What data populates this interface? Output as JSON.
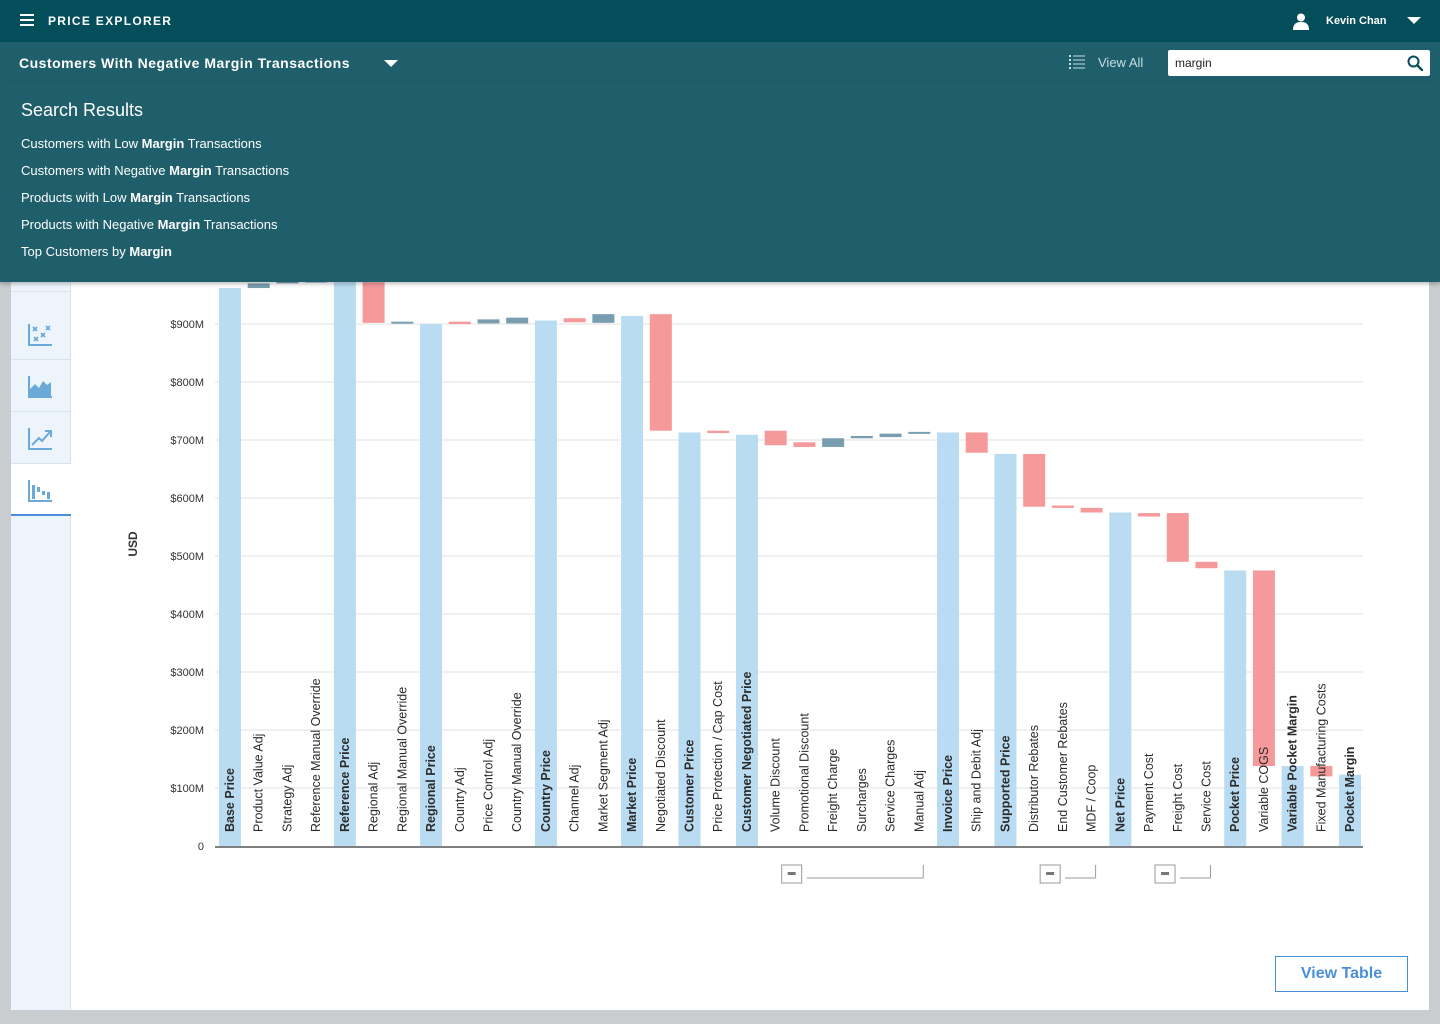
{
  "header": {
    "app_title": "PRICE EXPLORER",
    "user_name": "Kevin Chan",
    "icons": {
      "menu": "hamburger-icon",
      "user": "user-icon",
      "user_menu": "chevron-down-icon"
    }
  },
  "subheader": {
    "report_title": "Customers With Negative Margin Transactions",
    "view_all_label": "View All",
    "search_value": "margin",
    "icons": {
      "report_menu": "chevron-down-icon",
      "view_all": "list-icon",
      "search": "search-icon"
    }
  },
  "search_results": {
    "heading": "Search Results",
    "items": [
      {
        "before": "Customers with Low ",
        "match": "Margin",
        "after": " Transactions"
      },
      {
        "before": "Customers with Negative ",
        "match": "Margin",
        "after": " Transactions"
      },
      {
        "before": "Products with Low ",
        "match": "Margin",
        "after": " Transactions"
      },
      {
        "before": "Products with Negative ",
        "match": "Margin",
        "after": " Transactions"
      },
      {
        "before": "Top Customers by ",
        "match": "Margin",
        "after": ""
      }
    ]
  },
  "sidebar": {
    "items": [
      {
        "icon": "chart-type-icon"
      },
      {
        "icon": "scatter-chart-icon"
      },
      {
        "icon": "area-chart-icon"
      },
      {
        "icon": "trend-line-icon"
      },
      {
        "icon": "waterfall-chart-icon",
        "active": true
      }
    ]
  },
  "actions": {
    "view_table_label": "View Table"
  },
  "chart_data": {
    "type": "bar",
    "subtype": "waterfall",
    "ylabel": "USD",
    "ylim": [
      0,
      1000
    ],
    "y_ticks": [
      {
        "value": 0,
        "label": "0"
      },
      {
        "value": 100,
        "label": "$100M"
      },
      {
        "value": 200,
        "label": "$200M"
      },
      {
        "value": 300,
        "label": "$300M"
      },
      {
        "value": 400,
        "label": "$400M"
      },
      {
        "value": 500,
        "label": "$500M"
      },
      {
        "value": 600,
        "label": "$600M"
      },
      {
        "value": 700,
        "label": "$700M"
      },
      {
        "value": 800,
        "label": "$800M"
      },
      {
        "value": 900,
        "label": "$900M"
      }
    ],
    "colors": {
      "total": "#b9dcf2",
      "decrease": "#f5999b",
      "increase": "#7a9eb1",
      "label": "#2b2b2b"
    },
    "categories": [
      {
        "label": "Base Price",
        "kind": "total",
        "start": 0,
        "end": 962
      },
      {
        "label": "Product Value Adj",
        "kind": "increase",
        "start": 962,
        "end": 970
      },
      {
        "label": "Strategy Adj",
        "kind": "increase",
        "start": 970,
        "end": 975
      },
      {
        "label": "Reference Manual Override",
        "kind": "increase",
        "start": 975,
        "end": 975
      },
      {
        "label": "Reference Price",
        "kind": "total",
        "start": 0,
        "end": 972
      },
      {
        "label": "Regional Adj",
        "kind": "decrease",
        "start": 972,
        "end": 902
      },
      {
        "label": "Regional Manual Override",
        "kind": "increase",
        "start": 902,
        "end": 904
      },
      {
        "label": "Regional Price",
        "kind": "total",
        "start": 0,
        "end": 900
      },
      {
        "label": "Country Adj",
        "kind": "decrease",
        "start": 904,
        "end": 900
      },
      {
        "label": "Price Control Adj",
        "kind": "increase",
        "start": 901,
        "end": 908
      },
      {
        "label": "Country Manual Override",
        "kind": "increase",
        "start": 901,
        "end": 911
      },
      {
        "label": "Country Price",
        "kind": "total",
        "start": 0,
        "end": 906
      },
      {
        "label": "Channel Adj",
        "kind": "decrease",
        "start": 910,
        "end": 903
      },
      {
        "label": "Market Segment Adj",
        "kind": "increase",
        "start": 902,
        "end": 917
      },
      {
        "label": "Market Price",
        "kind": "total",
        "start": 0,
        "end": 914
      },
      {
        "label": "Negotiated Discount",
        "kind": "decrease",
        "start": 917,
        "end": 716
      },
      {
        "label": "Customer Price",
        "kind": "total",
        "start": 0,
        "end": 713
      },
      {
        "label": "Price Protection / Cap Cost",
        "kind": "decrease",
        "start": 716,
        "end": 712
      },
      {
        "label": "Customer Negotiated Price",
        "kind": "total",
        "start": 0,
        "end": 709
      },
      {
        "label": "Volume Discount",
        "kind": "decrease",
        "start": 716,
        "end": 691
      },
      {
        "label": "Promotional Discount",
        "kind": "decrease",
        "start": 696,
        "end": 688
      },
      {
        "label": "Freight Charge",
        "kind": "increase",
        "start": 688,
        "end": 703
      },
      {
        "label": "Surcharges",
        "kind": "increase",
        "start": 703,
        "end": 707
      },
      {
        "label": "Service Charges",
        "kind": "increase",
        "start": 705,
        "end": 711
      },
      {
        "label": "Manual Adj",
        "kind": "increase",
        "start": 711,
        "end": 714
      },
      {
        "label": "Invoice Price",
        "kind": "total",
        "start": 0,
        "end": 713
      },
      {
        "label": "Ship and Debit Adj",
        "kind": "decrease",
        "start": 713,
        "end": 678
      },
      {
        "label": "Supported Price",
        "kind": "total",
        "start": 0,
        "end": 676
      },
      {
        "label": "Distributor Rebates",
        "kind": "decrease",
        "start": 676,
        "end": 585
      },
      {
        "label": "End Customer Rebates",
        "kind": "decrease",
        "start": 587,
        "end": 583
      },
      {
        "label": "MDF / Coop",
        "kind": "decrease",
        "start": 583,
        "end": 575
      },
      {
        "label": "Net Price",
        "kind": "total",
        "start": 0,
        "end": 575
      },
      {
        "label": "Payment Cost",
        "kind": "decrease",
        "start": 574,
        "end": 568
      },
      {
        "label": "Freight Cost",
        "kind": "decrease",
        "start": 574,
        "end": 490
      },
      {
        "label": "Service Cost",
        "kind": "decrease",
        "start": 490,
        "end": 479
      },
      {
        "label": "Pocket Price",
        "kind": "total",
        "start": 0,
        "end": 475
      },
      {
        "label": "Variable COGS",
        "kind": "decrease",
        "start": 475,
        "end": 138
      },
      {
        "label": "Variable Pocket Margin",
        "kind": "total",
        "start": 0,
        "end": 138
      },
      {
        "label": "Fixed Manufacturing Costs",
        "kind": "decrease",
        "start": 138,
        "end": 120
      },
      {
        "label": "Pocket Margin",
        "kind": "total",
        "start": 0,
        "end": 123
      }
    ],
    "groups": [
      {
        "from": "Volume Discount",
        "to": "Manual Adj",
        "state": "expanded"
      },
      {
        "from": "Distributor Rebates",
        "to": "MDF / Coop",
        "state": "expanded"
      },
      {
        "from": "Payment Cost",
        "to": "Service Cost",
        "state": "expanded"
      }
    ],
    "grid": true,
    "legend": "none"
  }
}
